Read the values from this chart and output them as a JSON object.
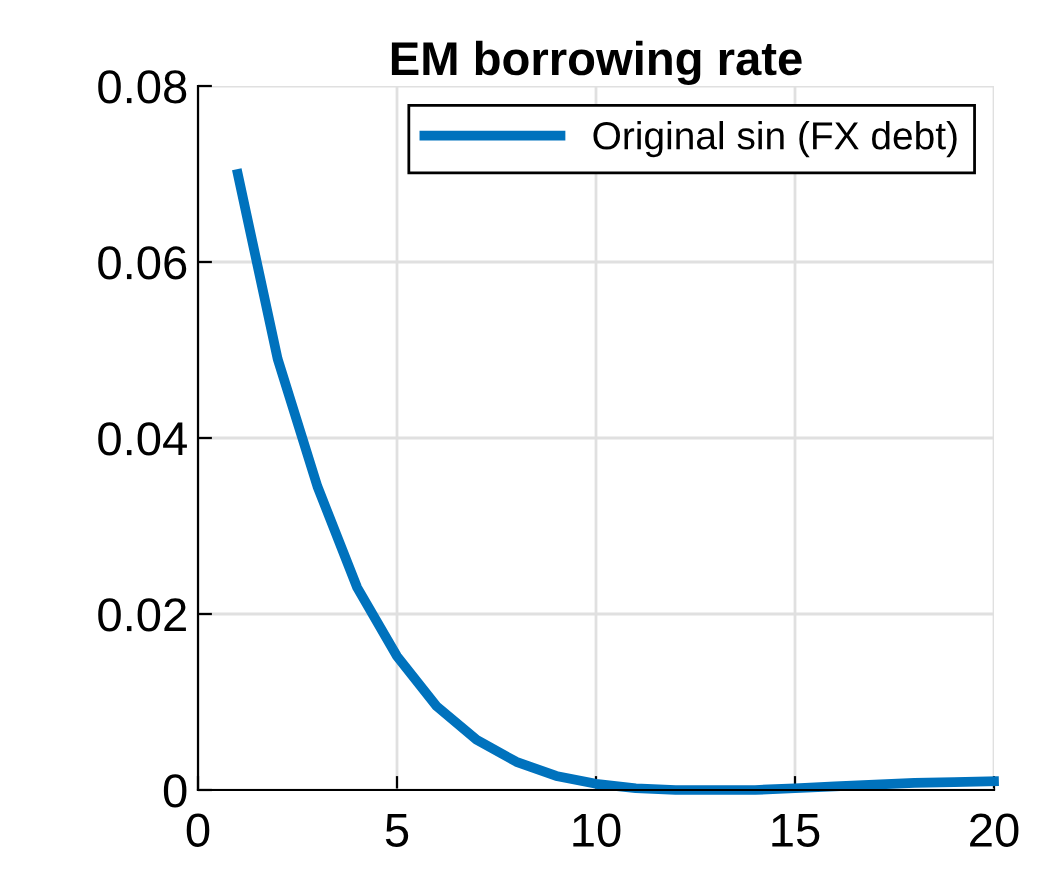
{
  "chart_data": {
    "type": "line",
    "title": "EM borrowing rate",
    "x": [
      1,
      2,
      3,
      4,
      5,
      6,
      7,
      8,
      9,
      10,
      11,
      12,
      13,
      14,
      15,
      16,
      17,
      18,
      19,
      20
    ],
    "series": [
      {
        "name": "Original sin (FX debt)",
        "color": "#0072bd",
        "values": [
          0.07,
          0.049,
          0.0345,
          0.023,
          0.0152,
          0.0095,
          0.0057,
          0.0032,
          0.0016,
          0.0007,
          0.0002,
          0.0,
          0.0,
          0.0,
          0.0002,
          0.0004,
          0.0006,
          0.0008,
          0.0009,
          0.001
        ]
      }
    ],
    "xlim": [
      0,
      20
    ],
    "xticks": [
      0,
      5,
      10,
      15,
      20
    ],
    "ylim": [
      0,
      0.08
    ],
    "yticks": [
      0,
      0.02,
      0.04,
      0.06,
      0.08
    ],
    "grid": true,
    "legend": "top right",
    "line_style": "solid",
    "marker": "none"
  }
}
